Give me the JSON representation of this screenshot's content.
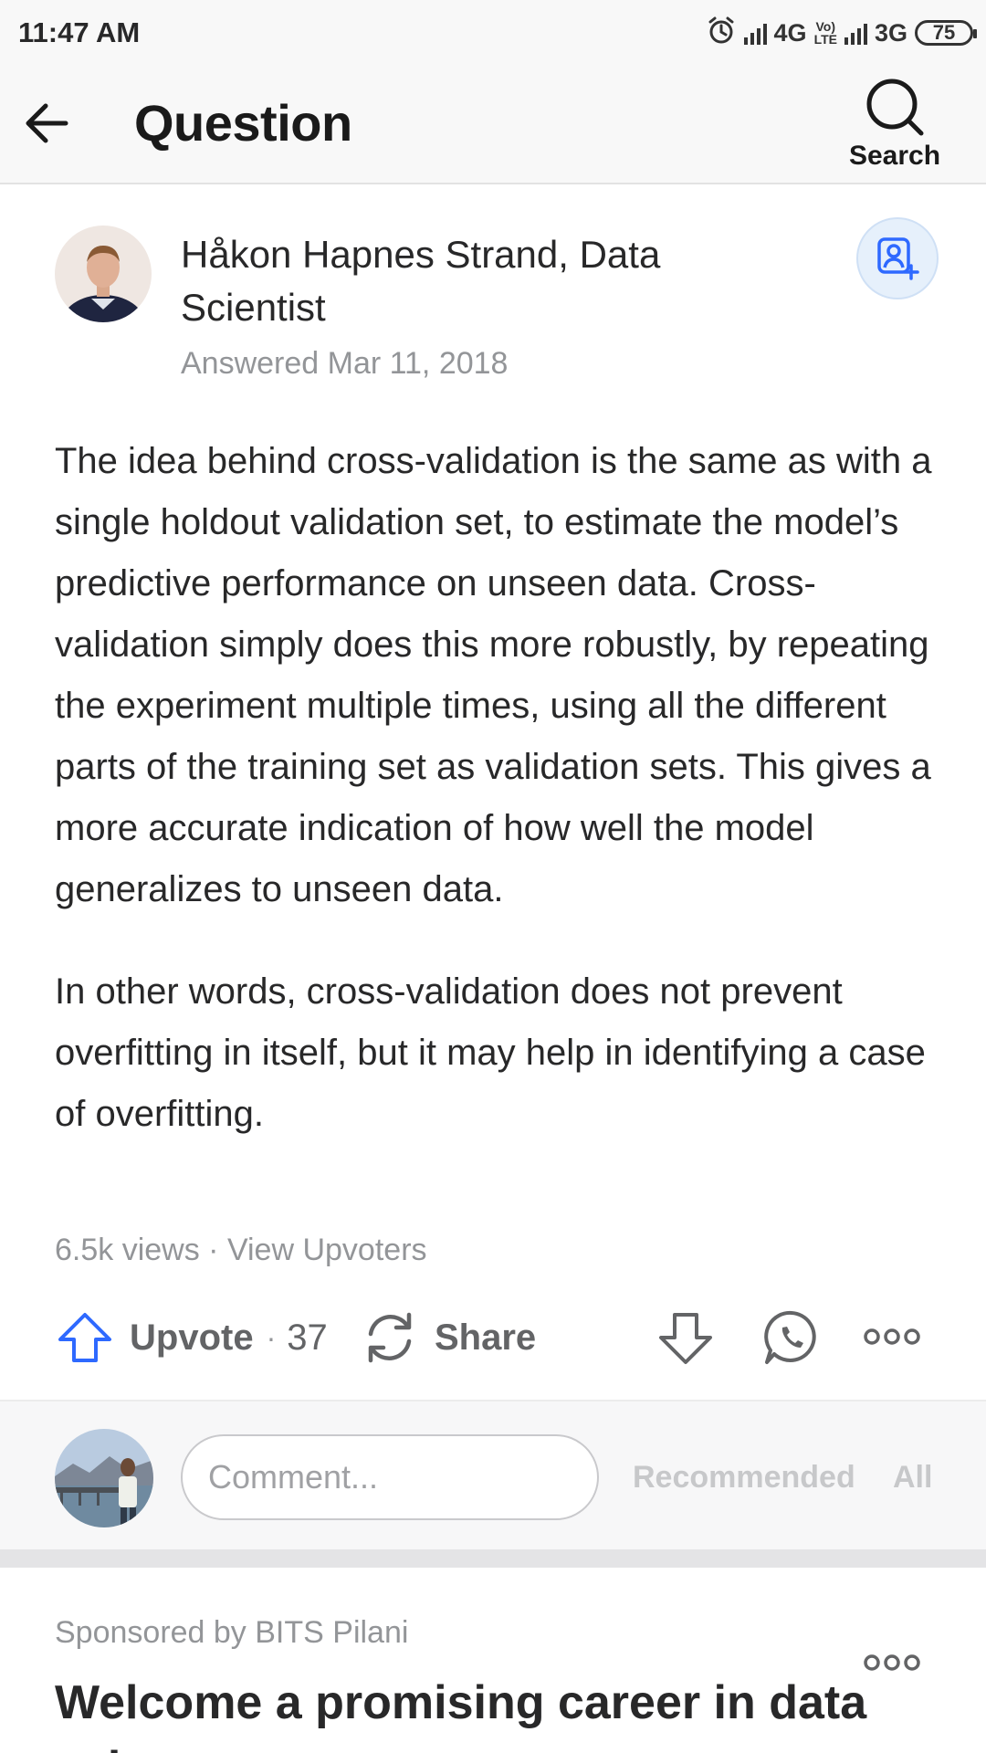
{
  "status_bar": {
    "time": "11:47 AM",
    "network1": "4G",
    "volte_top": "Vo)",
    "volte_bottom": "LTE",
    "network2": "3G",
    "battery": "75"
  },
  "header": {
    "title": "Question",
    "search_label": "Search"
  },
  "answer": {
    "author": "Håkon Hapnes Strand, Data Scientist",
    "answered": "Answered Mar 11, 2018",
    "paragraphs": [
      "The idea behind cross-validation is the same as with a single holdout validation set, to estimate the model’s predictive performance on unseen data. Cross-validation simply does this more robustly, by repeating the experiment multiple times, using all the different parts of the training set as validation sets. This gives a more accurate indication of how well the model generalizes to unseen data.",
      "In other words, cross-validation does not prevent overfitting in itself, but it may help in identifying a case of overfitting."
    ],
    "meta": "6.5k views · View Upvoters"
  },
  "actions": {
    "upvote_label": "Upvote",
    "separator": "·",
    "upvote_count": "37",
    "share_label": "Share"
  },
  "comments": {
    "placeholder": "Comment...",
    "sort_recommended": "Recommended",
    "sort_all": "All"
  },
  "sponsored": {
    "by": "Sponsored by BITS Pilani",
    "headline": "Welcome a promising career in data science"
  },
  "colors": {
    "accent_blue": "#2e69ff",
    "icon_gray": "#636466"
  }
}
